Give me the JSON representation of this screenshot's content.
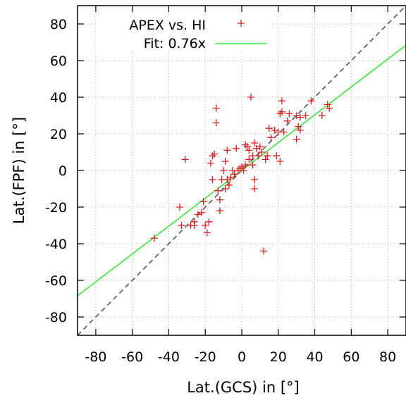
{
  "chart_data": {
    "type": "scatter",
    "xlabel": "Lat.(GCS) in [°]",
    "ylabel": "Lat.(FPF) in [°]",
    "xlim": [
      -90,
      90
    ],
    "ylim": [
      -90,
      90
    ],
    "xticks": [
      -80,
      -60,
      -40,
      -20,
      0,
      20,
      40,
      60,
      80
    ],
    "yticks": [
      -80,
      -60,
      -40,
      -20,
      0,
      20,
      40,
      60,
      80
    ],
    "grid": true,
    "legend_position": "top-left",
    "colors": {
      "points": "#e41a1c",
      "fit": "#33ee33",
      "identity": "#555555"
    },
    "series": [
      {
        "name": "APEX vs. HI",
        "marker": "+",
        "points": [
          [
            -48,
            -37
          ],
          [
            -34,
            -20
          ],
          [
            -33,
            -30
          ],
          [
            -31,
            6
          ],
          [
            -28,
            -30
          ],
          [
            -26,
            -28
          ],
          [
            -26,
            -30
          ],
          [
            -24,
            -24
          ],
          [
            -22,
            -23
          ],
          [
            -21,
            -17
          ],
          [
            -20,
            -30
          ],
          [
            -19,
            -34
          ],
          [
            -18,
            -28
          ],
          [
            -17,
            4
          ],
          [
            -16,
            8
          ],
          [
            -16,
            -5
          ],
          [
            -15,
            9
          ],
          [
            -14,
            34
          ],
          [
            -14,
            26
          ],
          [
            -13,
            -11
          ],
          [
            -12,
            -16
          ],
          [
            -12,
            -22
          ],
          [
            -11,
            -5
          ],
          [
            -10,
            0
          ],
          [
            -9,
            5
          ],
          [
            -9,
            -10
          ],
          [
            -8,
            11
          ],
          [
            -8,
            -5
          ],
          [
            -7,
            -8
          ],
          [
            -6,
            -4
          ],
          [
            -5,
            0
          ],
          [
            -4,
            -2
          ],
          [
            -3,
            12
          ],
          [
            -2,
            0
          ],
          [
            -1,
            1
          ],
          [
            0,
            2
          ],
          [
            1,
            0
          ],
          [
            2,
            3
          ],
          [
            2,
            14
          ],
          [
            3,
            13
          ],
          [
            4,
            11
          ],
          [
            4,
            6
          ],
          [
            5,
            40
          ],
          [
            6,
            8
          ],
          [
            6,
            3
          ],
          [
            7,
            -5
          ],
          [
            7,
            -10
          ],
          [
            7,
            15
          ],
          [
            8,
            12
          ],
          [
            9,
            8
          ],
          [
            10,
            13
          ],
          [
            11,
            10
          ],
          [
            12,
            -44
          ],
          [
            13,
            6
          ],
          [
            14,
            8
          ],
          [
            15,
            23
          ],
          [
            16,
            18
          ],
          [
            18,
            22
          ],
          [
            19,
            8
          ],
          [
            20,
            21
          ],
          [
            21,
            31
          ],
          [
            21,
            5
          ],
          [
            22,
            38
          ],
          [
            22,
            32
          ],
          [
            23,
            21
          ],
          [
            25,
            27
          ],
          [
            26,
            31
          ],
          [
            30,
            30
          ],
          [
            30,
            17
          ],
          [
            31,
            24
          ],
          [
            32,
            22
          ],
          [
            32,
            29
          ],
          [
            35,
            30
          ],
          [
            38,
            38
          ],
          [
            44,
            30
          ],
          [
            47,
            36
          ],
          [
            48,
            34
          ]
        ]
      },
      {
        "name": "Fit: 0.76x",
        "slope": 0.76
      },
      {
        "name": "",
        "slope": 1
      }
    ]
  }
}
